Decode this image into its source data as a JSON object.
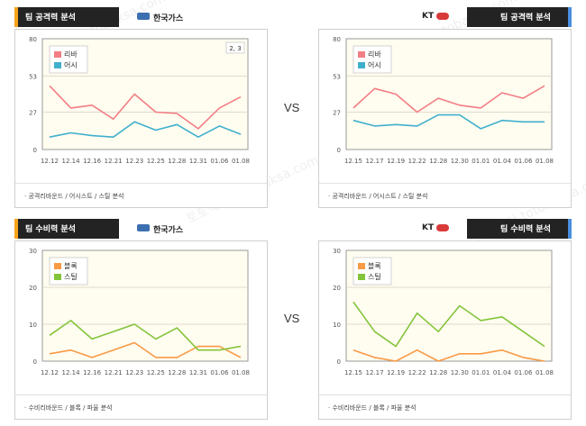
{
  "vs_label": "VS",
  "watermark": "토토박사 totobaksa.com",
  "colors": {
    "rebound": "#f37e84",
    "assist": "#3fb0cc",
    "block": "#f99a45",
    "steal": "#84c43a",
    "plot_bg": "#fffcf0"
  },
  "panels": [
    {
      "id": "off-home",
      "title": "팀 공격력 분석",
      "team": "한국가스",
      "side": "left",
      "footer": "· 공격리바운드 / 어시스트 / 스틸 분석",
      "legend_extra": "2, 3",
      "chart_data": {
        "type": "line",
        "yticks": [
          0,
          27,
          53,
          80
        ],
        "ylim": [
          0,
          80
        ],
        "categories": [
          "12.12",
          "12.14",
          "12.16",
          "12.21",
          "12.23",
          "12.25",
          "12.28",
          "12.31",
          "01.06",
          "01.08"
        ],
        "series": [
          {
            "name": "리바",
            "color": "#f37e84",
            "values": [
              46,
              30,
              32,
              22,
              40,
              27,
              26,
              15,
              30,
              38
            ]
          },
          {
            "name": "어시",
            "color": "#3fb0cc",
            "values": [
              9,
              12,
              10,
              9,
              20,
              14,
              18,
              9,
              17,
              11
            ]
          }
        ]
      }
    },
    {
      "id": "off-away",
      "title": "팀 공격력 분석",
      "team": "KT",
      "side": "right",
      "footer": "· 공격리바운드 / 어시스트 / 스틸 분석",
      "chart_data": {
        "type": "line",
        "yticks": [
          0,
          27,
          53,
          80
        ],
        "ylim": [
          0,
          80
        ],
        "categories": [
          "12.15",
          "12.17",
          "12.19",
          "12.22",
          "12.28",
          "12.30",
          "01.01",
          "01.04",
          "01.06",
          "01.08"
        ],
        "series": [
          {
            "name": "리바",
            "color": "#f37e84",
            "values": [
              30,
              44,
              40,
              27,
              37,
              32,
              30,
              41,
              37,
              46
            ]
          },
          {
            "name": "어시",
            "color": "#3fb0cc",
            "values": [
              21,
              17,
              18,
              17,
              25,
              25,
              15,
              21,
              20,
              20
            ]
          }
        ]
      }
    },
    {
      "id": "def-home",
      "title": "팀 수비력 분석",
      "team": "한국가스",
      "side": "left",
      "footer": "· 수비리바운드 / 블록 / 파울 분석",
      "chart_data": {
        "type": "line",
        "yticks": [
          0,
          10,
          20,
          30
        ],
        "ylim": [
          0,
          30
        ],
        "categories": [
          "12.12",
          "12.14",
          "12.16",
          "12.21",
          "12.23",
          "12.25",
          "12.28",
          "12.31",
          "01.06",
          "01.08"
        ],
        "series": [
          {
            "name": "블록",
            "color": "#f99a45",
            "values": [
              2,
              3,
              1,
              3,
              5,
              1,
              1,
              4,
              4,
              1
            ]
          },
          {
            "name": "스틸",
            "color": "#84c43a",
            "values": [
              7,
              11,
              6,
              8,
              10,
              6,
              9,
              3,
              3,
              4
            ]
          }
        ]
      }
    },
    {
      "id": "def-away",
      "title": "팀 수비력 분석",
      "team": "KT",
      "side": "right",
      "footer": "· 수비리바운드 / 블록 / 파울 분석",
      "chart_data": {
        "type": "line",
        "yticks": [
          0,
          10,
          20,
          30
        ],
        "ylim": [
          0,
          30
        ],
        "categories": [
          "12.15",
          "12.17",
          "12.19",
          "12.22",
          "12.28",
          "12.30",
          "01.01",
          "01.04",
          "01.06",
          "01.08"
        ],
        "series": [
          {
            "name": "블록",
            "color": "#f99a45",
            "values": [
              3,
              1,
              0,
              3,
              0,
              2,
              2,
              3,
              1,
              0
            ]
          },
          {
            "name": "스틸",
            "color": "#84c43a",
            "values": [
              16,
              8,
              4,
              13,
              8,
              15,
              11,
              12,
              8,
              4
            ]
          }
        ]
      }
    }
  ]
}
